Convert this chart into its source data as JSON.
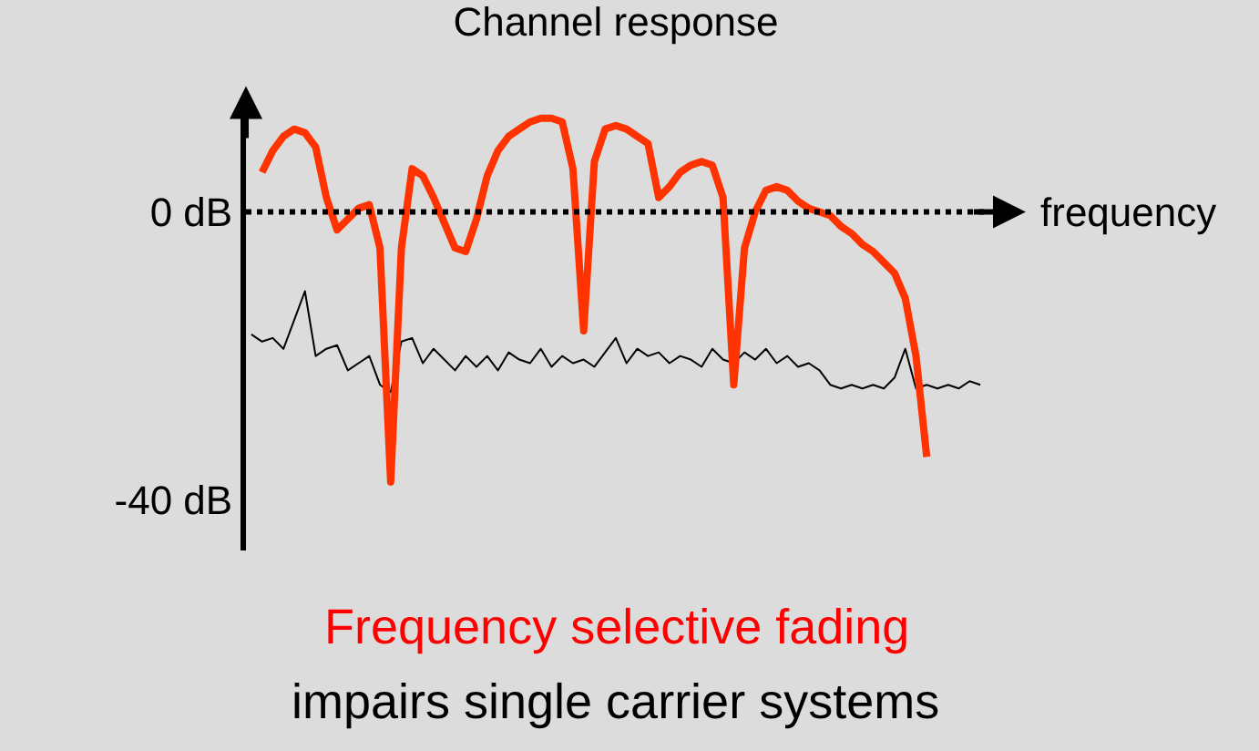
{
  "chart_data": {
    "type": "line",
    "title": "Channel response",
    "xlabel": "frequency",
    "categories": [
      null,
      null,
      null,
      null,
      null,
      null,
      null,
      null,
      null,
      null,
      null,
      null,
      null,
      null,
      null,
      null,
      null,
      null,
      null,
      null,
      null,
      null,
      null,
      null,
      null,
      null,
      null,
      null,
      null,
      null,
      null,
      null,
      null,
      null,
      null,
      null,
      null,
      null,
      null,
      null,
      null,
      null,
      null,
      null,
      null,
      null,
      null,
      null,
      null,
      null,
      null,
      null,
      null,
      null,
      null,
      null,
      null,
      null,
      null,
      null,
      null,
      null,
      null,
      null,
      null,
      null,
      null,
      null,
      null
    ],
    "series": [
      {
        "color": "#000000",
        "values": [
          -17,
          -18,
          -17.5,
          -19,
          -15,
          -11,
          -20,
          -19,
          -18.5,
          -22,
          -21,
          -20,
          -24,
          -25,
          -18,
          -17.5,
          -21,
          -19,
          -20.5,
          -22,
          -20,
          -21.5,
          -20,
          -22,
          -19.5,
          -20.5,
          -21,
          -19,
          -21.5,
          -20,
          -21,
          -20.5,
          -21.5,
          -19.5,
          -17.5,
          -21,
          -19,
          -20,
          -19.5,
          -21,
          -20,
          -20.5,
          -21.5,
          -19,
          -20.5,
          -21,
          -19.5,
          -20.5,
          -19,
          -21,
          -20,
          -21.5,
          -21,
          -22,
          -24,
          -24.5,
          -24,
          -24.5,
          -24,
          -24.5,
          -23,
          -19,
          -24.5,
          -24,
          -24.5,
          -24,
          -24.5,
          -23.5,
          -24
        ]
      },
      {
        "color": "#ff3300",
        "values": [
          null,
          5.5,
          8.5,
          10.5,
          11.5,
          11,
          9,
          2,
          -2.5,
          -1,
          0.5,
          1,
          -5,
          -37.5,
          -5,
          6,
          5,
          2,
          -1.5,
          -5,
          -5.5,
          -1,
          5,
          8.5,
          10.5,
          11.5,
          12.5,
          13,
          13,
          12.5,
          6,
          -16.5,
          7,
          11.5,
          12,
          11.5,
          10.5,
          9.5,
          2,
          3.5,
          5.5,
          6.5,
          7,
          6.5,
          2,
          -24,
          -5,
          0,
          3,
          3.5,
          3,
          1.5,
          0.5,
          0,
          -0.5,
          -2,
          -3,
          -4.5,
          -5.5,
          -7,
          -8.5,
          -12,
          -20,
          -34,
          null,
          null,
          null,
          null,
          null
        ]
      }
    ],
    "ylim": [
      -47,
      15
    ],
    "yticks": [
      {
        "value": 0,
        "label": "0 dB"
      },
      {
        "value": -40,
        "label": "-40 dB"
      }
    ],
    "tick_labels": "y",
    "grid": false,
    "marker": "none",
    "line_style": "solid",
    "ref_lines": [
      {
        "axis": "y",
        "value": 0,
        "label": null,
        "line_style": "dotted",
        "color": "#000000"
      }
    ],
    "annotations": [
      "Frequency selective fading",
      "impairs single carrier systems"
    ]
  }
}
